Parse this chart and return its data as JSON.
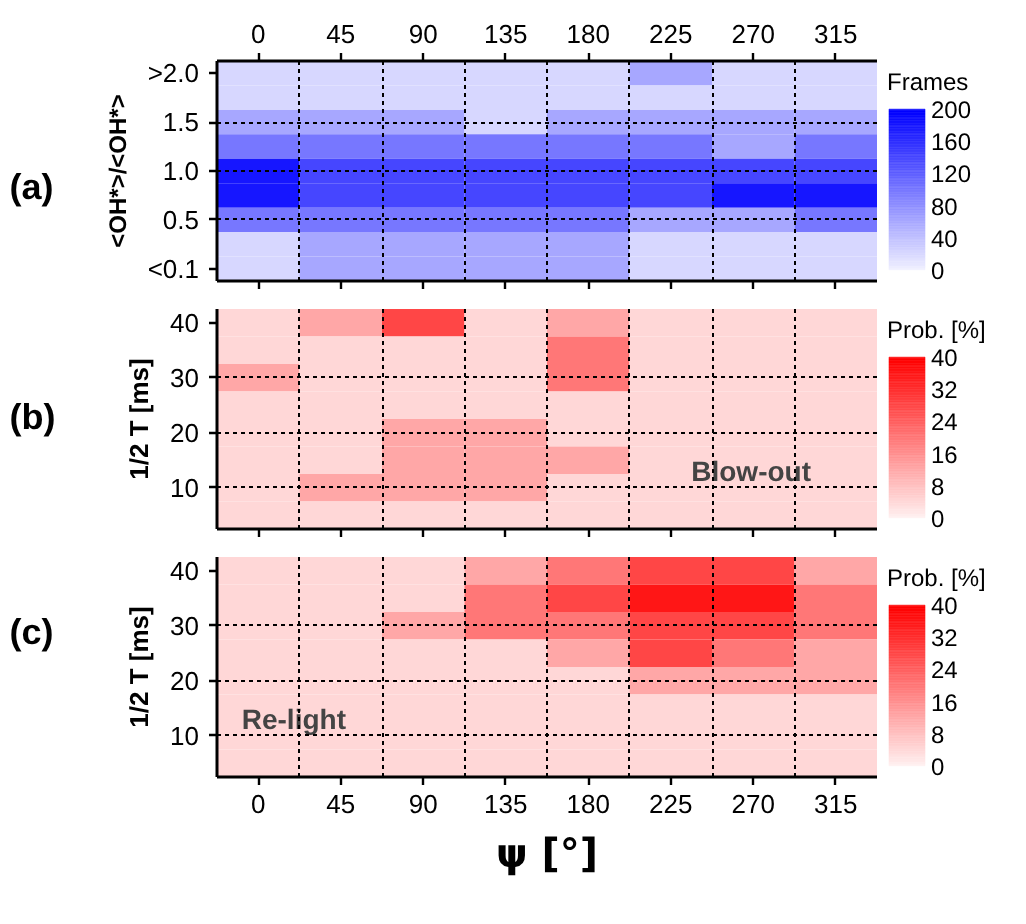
{
  "chart_data": [
    {
      "type": "heatmap",
      "title": "(a)",
      "ylabel": "<OH*>/<OH*>",
      "clabel": "Frames",
      "color": "#0000ff",
      "categories": [
        "0",
        "45",
        "90",
        "135",
        "180",
        "225",
        "270",
        "315"
      ],
      "y_categories": [
        ">2.0",
        null,
        "1.5",
        null,
        "1.0",
        null,
        "0.5",
        null,
        "<0.1"
      ],
      "cells": [
        [
          20,
          20,
          20,
          20,
          20,
          60,
          20,
          20
        ],
        [
          20,
          20,
          20,
          20,
          20,
          20,
          20,
          20
        ],
        [
          60,
          60,
          60,
          20,
          60,
          60,
          60,
          60
        ],
        [
          100,
          100,
          100,
          100,
          100,
          100,
          60,
          100
        ],
        [
          180,
          140,
          140,
          140,
          140,
          140,
          140,
          140
        ],
        [
          180,
          140,
          140,
          140,
          140,
          140,
          180,
          180
        ],
        [
          100,
          100,
          100,
          100,
          100,
          60,
          60,
          100
        ],
        [
          20,
          60,
          60,
          60,
          60,
          20,
          20,
          20
        ],
        [
          20,
          60,
          60,
          60,
          60,
          20,
          20,
          20
        ]
      ],
      "clim": [
        0,
        200
      ],
      "cticks": [
        0,
        40,
        80,
        120,
        160,
        200
      ],
      "grid": true
    },
    {
      "type": "heatmap",
      "title": "(b)",
      "ylabel": "1/2 T [ms]",
      "clabel": "Prob. [%]",
      "color": "#ff0000",
      "annotations": [
        "Blow-out"
      ],
      "categories": [
        "0",
        "45",
        "90",
        "135",
        "180",
        "225",
        "270",
        "315"
      ],
      "y_categories": [
        "40",
        null,
        "30",
        null,
        "20",
        null,
        "10",
        null
      ],
      "cells": [
        [
          4,
          12,
          28,
          4,
          12,
          4,
          4,
          4
        ],
        [
          4,
          4,
          4,
          4,
          20,
          4,
          4,
          4
        ],
        [
          12,
          4,
          4,
          4,
          20,
          4,
          4,
          4
        ],
        [
          4,
          4,
          4,
          4,
          4,
          4,
          4,
          4
        ],
        [
          4,
          4,
          12,
          12,
          4,
          4,
          4,
          4
        ],
        [
          4,
          4,
          12,
          12,
          12,
          4,
          4,
          4
        ],
        [
          4,
          12,
          12,
          12,
          4,
          4,
          4,
          4
        ],
        [
          4,
          4,
          4,
          4,
          4,
          4,
          4,
          4
        ]
      ],
      "tick_labels": "y",
      "clim": [
        0,
        40
      ],
      "cticks": [
        0,
        8,
        16,
        24,
        32,
        40
      ],
      "grid": true
    },
    {
      "type": "heatmap",
      "title": "(c)",
      "xlabel": "ψ [°]",
      "ylabel": "1/2 T [ms]",
      "clabel": "Prob. [%]",
      "color": "#ff0000",
      "annotations": [
        "Re-light"
      ],
      "categories": [
        "0",
        "45",
        "90",
        "135",
        "180",
        "225",
        "270",
        "315"
      ],
      "y_categories": [
        "40",
        null,
        "30",
        null,
        "20",
        null,
        "10",
        null
      ],
      "cells": [
        [
          4,
          4,
          4,
          12,
          20,
          28,
          28,
          12
        ],
        [
          4,
          4,
          4,
          20,
          28,
          36,
          36,
          20
        ],
        [
          4,
          4,
          12,
          20,
          20,
          28,
          28,
          20
        ],
        [
          4,
          4,
          4,
          4,
          12,
          28,
          20,
          12
        ],
        [
          4,
          4,
          4,
          4,
          4,
          12,
          12,
          12
        ],
        [
          4,
          4,
          4,
          4,
          4,
          4,
          4,
          4
        ],
        [
          4,
          4,
          4,
          4,
          4,
          4,
          4,
          4
        ],
        [
          4,
          4,
          4,
          4,
          4,
          4,
          4,
          4
        ]
      ],
      "clim": [
        0,
        40
      ],
      "cticks": [
        0,
        8,
        16,
        24,
        32,
        40
      ],
      "grid": true
    }
  ]
}
